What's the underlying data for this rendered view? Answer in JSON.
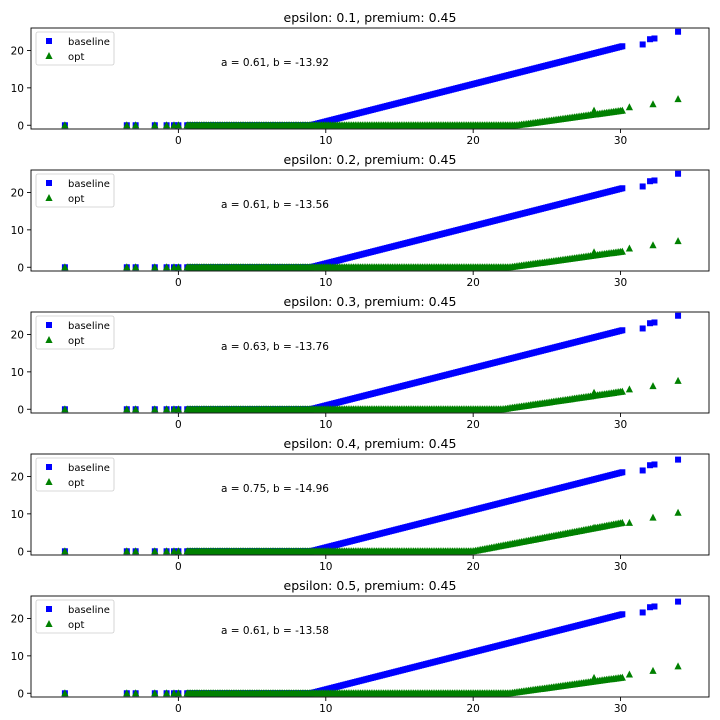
{
  "chart_data": [
    {
      "type": "scatter",
      "title": "epsilon: 0.1, premium: 0.45",
      "annotation": "a = 0.61, b = -13.92",
      "xlim": [
        -10,
        36
      ],
      "ylim": [
        -1,
        26
      ],
      "xticks": [
        0,
        10,
        20,
        30
      ],
      "yticks": [
        0,
        10,
        20
      ],
      "legend": {
        "placement": "top-left",
        "entries": [
          "baseline",
          "opt"
        ]
      },
      "series": [
        {
          "name": "baseline",
          "marker": "square",
          "color": "#0000ff",
          "kink_x": 9,
          "slope": 1.0,
          "points": [
            [
              -7.7,
              0
            ],
            [
              -3.5,
              0
            ],
            [
              -2.9,
              0
            ],
            [
              -1.6,
              0
            ],
            [
              -0.8,
              0
            ],
            [
              -0.3,
              0
            ],
            [
              0,
              0
            ],
            [
              31.5,
              21.6
            ],
            [
              32,
              23
            ],
            [
              32.3,
              23.2
            ],
            [
              33.9,
              25
            ]
          ]
        },
        {
          "name": "opt",
          "marker": "triangle",
          "color": "#008000",
          "kink_x": 23,
          "slope": 0.55,
          "points": [
            [
              -7.7,
              0
            ],
            [
              -3.5,
              0
            ],
            [
              -2.9,
              0
            ],
            [
              -1.6,
              0
            ],
            [
              -0.8,
              0
            ],
            [
              -0.3,
              0
            ],
            [
              0,
              0
            ],
            [
              28.2,
              3.9
            ],
            [
              30.6,
              4.8
            ],
            [
              32.2,
              5.6
            ],
            [
              33.9,
              7.0
            ]
          ]
        }
      ]
    },
    {
      "type": "scatter",
      "title": "epsilon: 0.2, premium: 0.45",
      "annotation": "a = 0.61, b = -13.56",
      "xlim": [
        -10,
        36
      ],
      "ylim": [
        -1,
        26
      ],
      "xticks": [
        0,
        10,
        20,
        30
      ],
      "yticks": [
        0,
        10,
        20
      ],
      "legend": {
        "placement": "top-left",
        "entries": [
          "baseline",
          "opt"
        ]
      },
      "series": [
        {
          "name": "baseline",
          "marker": "square",
          "color": "#0000ff",
          "kink_x": 9,
          "slope": 1.0,
          "points": [
            [
              -7.7,
              0
            ],
            [
              -3.5,
              0
            ],
            [
              -2.9,
              0
            ],
            [
              -1.6,
              0
            ],
            [
              -0.8,
              0
            ],
            [
              -0.3,
              0
            ],
            [
              0,
              0
            ],
            [
              31.5,
              21.6
            ],
            [
              32,
              23
            ],
            [
              32.3,
              23.2
            ],
            [
              33.9,
              25
            ]
          ]
        },
        {
          "name": "opt",
          "marker": "triangle",
          "color": "#008000",
          "kink_x": 22.5,
          "slope": 0.55,
          "points": [
            [
              -7.7,
              0
            ],
            [
              -3.5,
              0
            ],
            [
              -2.9,
              0
            ],
            [
              -1.6,
              0
            ],
            [
              -0.8,
              0
            ],
            [
              -0.3,
              0
            ],
            [
              0,
              0
            ],
            [
              28.2,
              4.0
            ],
            [
              30.6,
              5.0
            ],
            [
              32.2,
              5.9
            ],
            [
              33.9,
              7.0
            ]
          ]
        }
      ]
    },
    {
      "type": "scatter",
      "title": "epsilon: 0.3, premium: 0.45",
      "annotation": "a = 0.63, b = -13.76",
      "xlim": [
        -10,
        36
      ],
      "ylim": [
        -1,
        26
      ],
      "xticks": [
        0,
        10,
        20,
        30
      ],
      "yticks": [
        0,
        10,
        20
      ],
      "legend": {
        "placement": "top-left",
        "entries": [
          "baseline",
          "opt"
        ]
      },
      "series": [
        {
          "name": "baseline",
          "marker": "square",
          "color": "#0000ff",
          "kink_x": 9,
          "slope": 1.0,
          "points": [
            [
              -7.7,
              0
            ],
            [
              -3.5,
              0
            ],
            [
              -2.9,
              0
            ],
            [
              -1.6,
              0
            ],
            [
              -0.8,
              0
            ],
            [
              -0.3,
              0
            ],
            [
              0,
              0
            ],
            [
              31.5,
              21.6
            ],
            [
              32,
              23
            ],
            [
              32.3,
              23.2
            ],
            [
              33.9,
              25
            ]
          ]
        },
        {
          "name": "opt",
          "marker": "triangle",
          "color": "#008000",
          "kink_x": 22,
          "slope": 0.58,
          "points": [
            [
              -7.7,
              0
            ],
            [
              -3.5,
              0
            ],
            [
              -2.9,
              0
            ],
            [
              -1.6,
              0
            ],
            [
              -0.8,
              0
            ],
            [
              -0.3,
              0
            ],
            [
              0,
              0
            ],
            [
              28.2,
              4.4
            ],
            [
              30.6,
              5.3
            ],
            [
              32.2,
              6.2
            ],
            [
              33.9,
              7.6
            ]
          ]
        }
      ]
    },
    {
      "type": "scatter",
      "title": "epsilon: 0.4, premium: 0.45",
      "annotation": "a = 0.75, b = -14.96",
      "xlim": [
        -10,
        36
      ],
      "ylim": [
        -1,
        26
      ],
      "xticks": [
        0,
        10,
        20,
        30
      ],
      "yticks": [
        0,
        10,
        20
      ],
      "legend": {
        "placement": "top-left",
        "entries": [
          "baseline",
          "opt"
        ]
      },
      "series": [
        {
          "name": "baseline",
          "marker": "square",
          "color": "#0000ff",
          "kink_x": 9,
          "slope": 1.0,
          "points": [
            [
              -7.7,
              0
            ],
            [
              -3.5,
              0
            ],
            [
              -2.9,
              0
            ],
            [
              -1.6,
              0
            ],
            [
              -0.8,
              0
            ],
            [
              -0.3,
              0
            ],
            [
              0,
              0
            ],
            [
              31.5,
              21.6
            ],
            [
              32,
              23
            ],
            [
              32.3,
              23.2
            ],
            [
              33.9,
              24.5
            ]
          ]
        },
        {
          "name": "opt",
          "marker": "triangle",
          "color": "#008000",
          "kink_x": 20,
          "slope": 0.75,
          "points": [
            [
              -7.7,
              0
            ],
            [
              -3.5,
              0
            ],
            [
              -2.9,
              0
            ],
            [
              -1.6,
              0
            ],
            [
              -0.8,
              0
            ],
            [
              -0.3,
              0
            ],
            [
              0,
              0
            ],
            [
              28.2,
              6.3
            ],
            [
              30.6,
              7.6
            ],
            [
              32.2,
              9.0
            ],
            [
              33.9,
              10.3
            ]
          ]
        }
      ]
    },
    {
      "type": "scatter",
      "title": "epsilon: 0.5, premium: 0.45",
      "annotation": "a = 0.61, b = -13.58",
      "xlim": [
        -10,
        36
      ],
      "ylim": [
        -1,
        26
      ],
      "xticks": [
        0,
        10,
        20,
        30
      ],
      "yticks": [
        0,
        10,
        20
      ],
      "legend": {
        "placement": "top-left",
        "entries": [
          "baseline",
          "opt"
        ]
      },
      "series": [
        {
          "name": "baseline",
          "marker": "square",
          "color": "#0000ff",
          "kink_x": 9,
          "slope": 1.0,
          "points": [
            [
              -7.7,
              0
            ],
            [
              -3.5,
              0
            ],
            [
              -2.9,
              0
            ],
            [
              -1.6,
              0
            ],
            [
              -0.8,
              0
            ],
            [
              -0.3,
              0
            ],
            [
              0,
              0
            ],
            [
              31.5,
              21.6
            ],
            [
              32,
              23
            ],
            [
              32.3,
              23.2
            ],
            [
              33.9,
              24.5
            ]
          ]
        },
        {
          "name": "opt",
          "marker": "triangle",
          "color": "#008000",
          "kink_x": 22.5,
          "slope": 0.55,
          "points": [
            [
              -7.7,
              0
            ],
            [
              -3.5,
              0
            ],
            [
              -2.9,
              0
            ],
            [
              -1.6,
              0
            ],
            [
              -0.8,
              0
            ],
            [
              -0.3,
              0
            ],
            [
              0,
              0
            ],
            [
              28.2,
              4.1
            ],
            [
              30.6,
              5.0
            ],
            [
              32.2,
              6.0
            ],
            [
              33.9,
              7.2
            ]
          ]
        }
      ]
    }
  ]
}
